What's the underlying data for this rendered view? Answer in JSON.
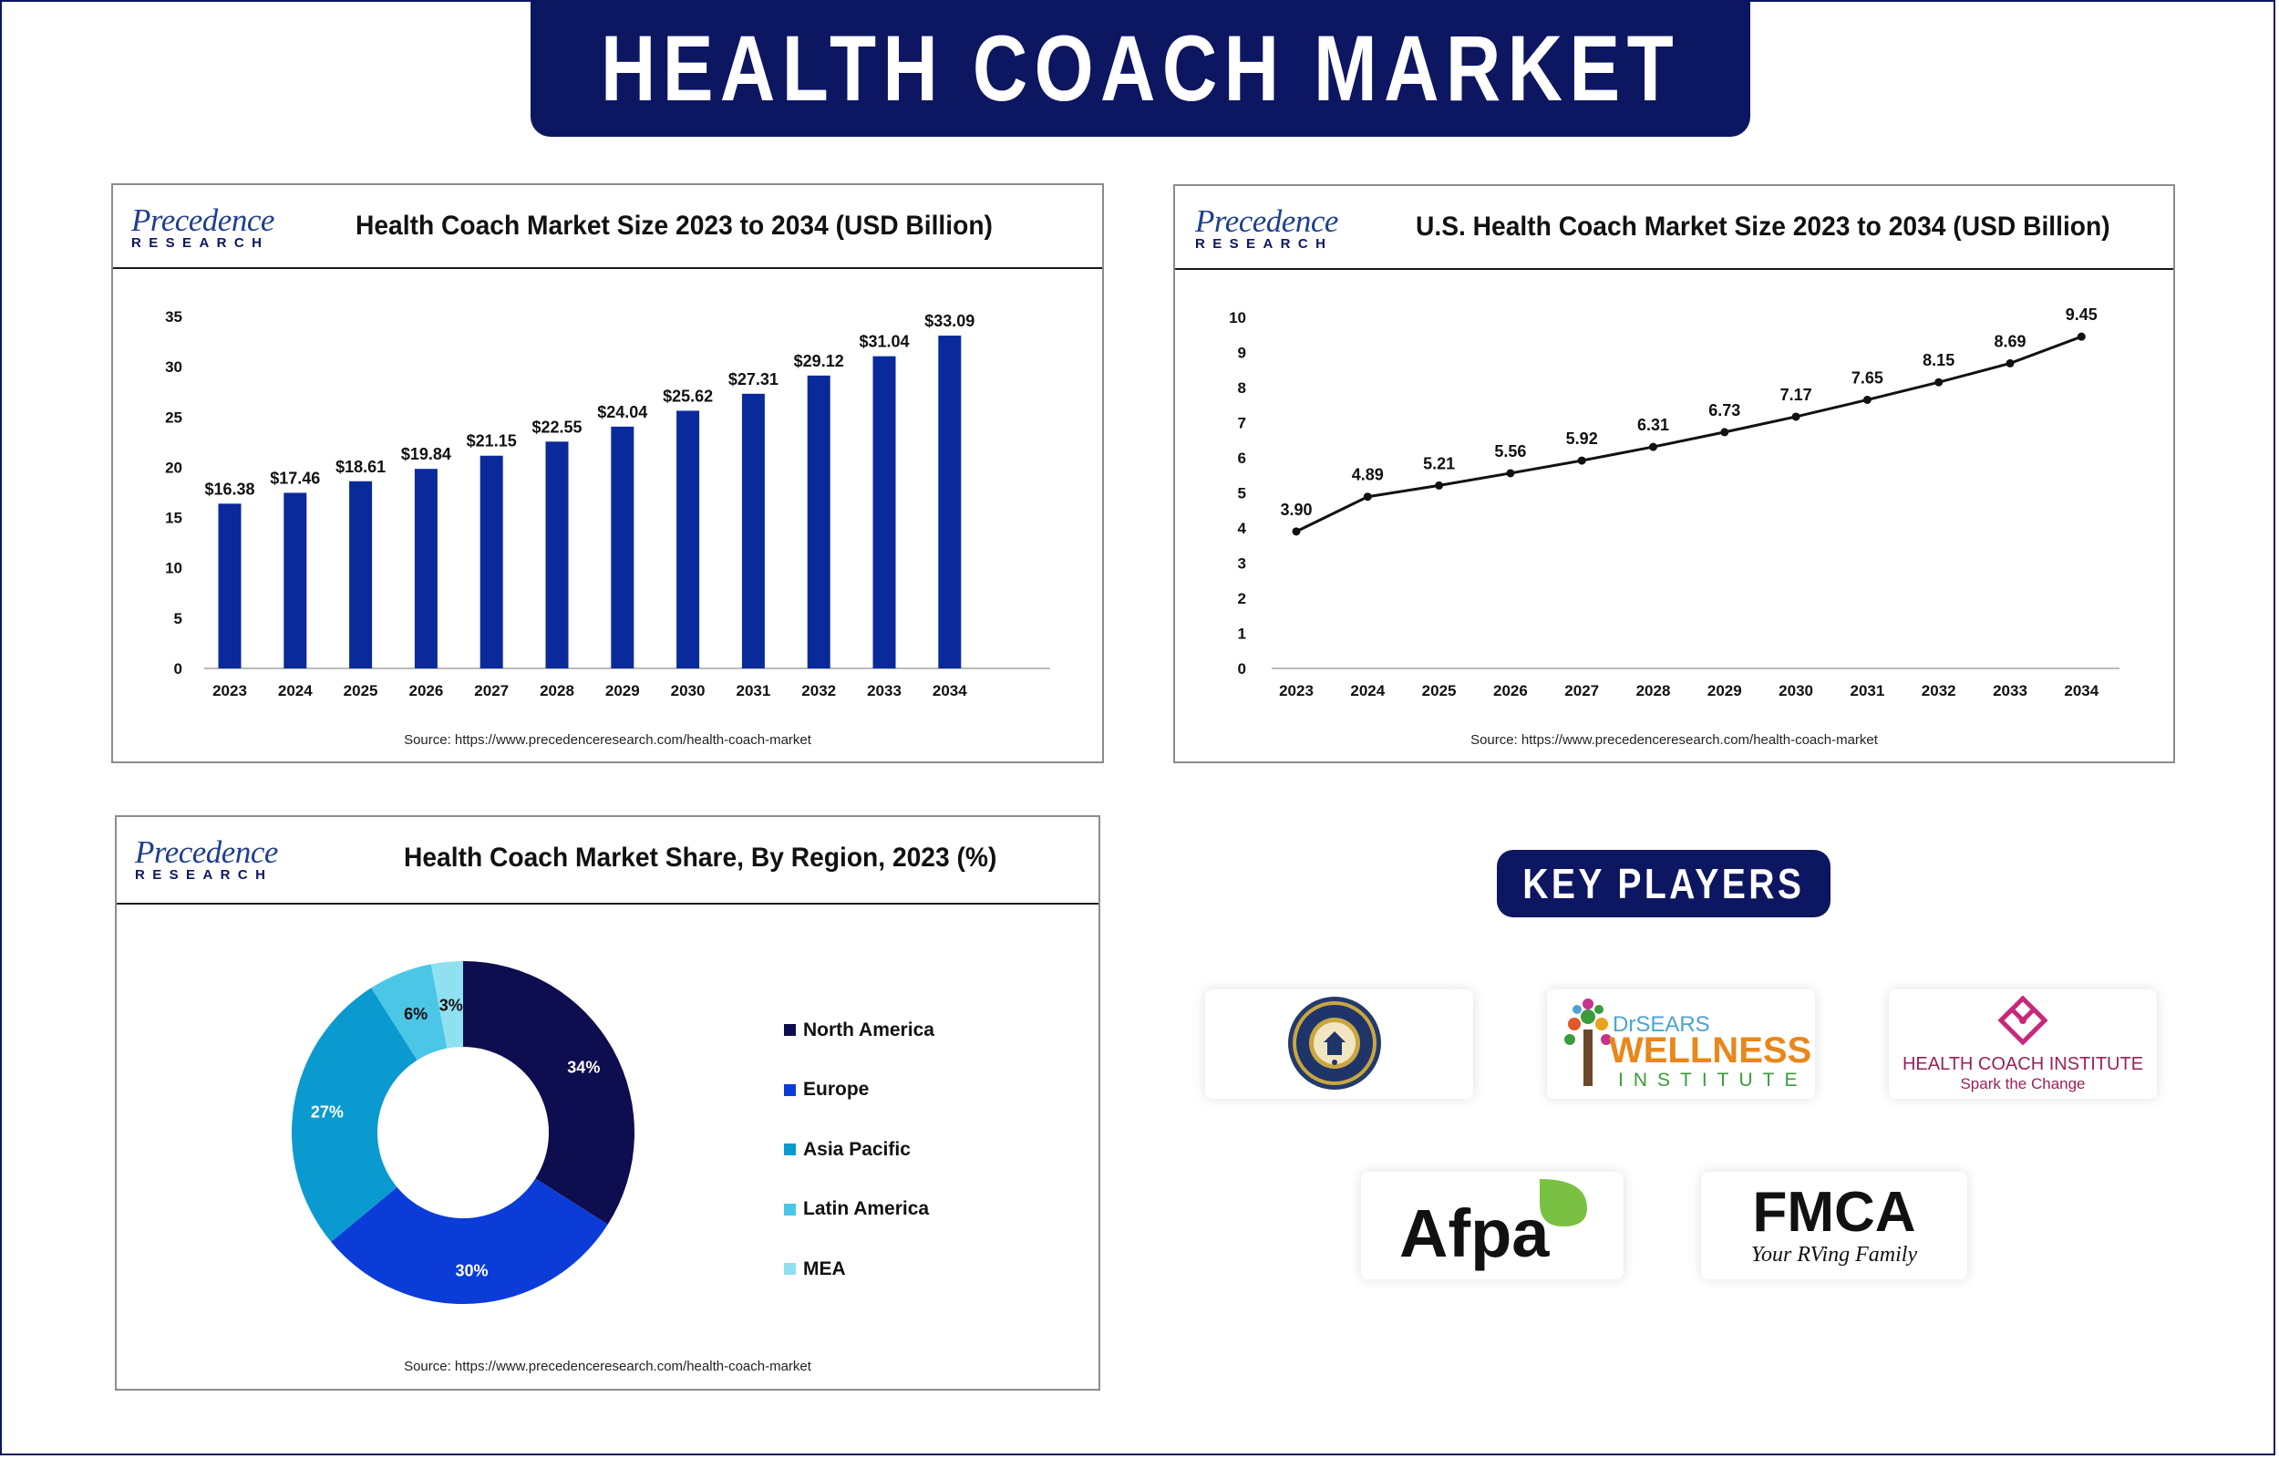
{
  "title": "HEALTH COACH MARKET",
  "brand": {
    "logo_top": "Precedence",
    "logo_bottom": "RESEARCH"
  },
  "colors": {
    "navy": "#0d1660",
    "bar": "#0a2a9b",
    "line": "#111111"
  },
  "panels": {
    "bar": {
      "title": "Health Coach Market Size 2023 to 2034 (USD Billion)",
      "source": "Source: https://www.precedenceresearch.com/health-coach-market"
    },
    "line": {
      "title": "U.S. Health Coach Market Size 2023 to 2034 (USD Billion)",
      "source": "Source: https://www.precedenceresearch.com/health-coach-market"
    },
    "donut": {
      "title": "Health Coach Market Share, By Region, 2023 (%)",
      "source": "Source: https://www.precedenceresearch.com/health-coach-market"
    }
  },
  "chart_data": [
    {
      "type": "bar",
      "title": "Health Coach Market Size 2023 to 2034 (USD Billion)",
      "categories": [
        "2023",
        "2024",
        "2025",
        "2026",
        "2027",
        "2028",
        "2029",
        "2030",
        "2031",
        "2032",
        "2033",
        "2034"
      ],
      "values": [
        16.38,
        17.46,
        18.61,
        19.84,
        21.15,
        22.55,
        24.04,
        25.62,
        27.31,
        29.12,
        31.04,
        33.09
      ],
      "data_labels": [
        "$16.38",
        "$17.46",
        "$18.61",
        "$19.84",
        "$21.15",
        "$22.55",
        "$24.04",
        "$25.62",
        "$27.31",
        "$29.12",
        "$31.04",
        "$33.09"
      ],
      "yticks": [
        0,
        5,
        10,
        15,
        20,
        25,
        30,
        35
      ],
      "ylim": [
        0,
        35
      ],
      "grid": false,
      "color": "#0a2a9b"
    },
    {
      "type": "line",
      "title": "U.S. Health Coach Market Size 2023 to 2034 (USD Billion)",
      "categories": [
        "2023",
        "2024",
        "2025",
        "2026",
        "2027",
        "2028",
        "2029",
        "2030",
        "2031",
        "2032",
        "2033",
        "2034"
      ],
      "values": [
        3.9,
        4.89,
        5.21,
        5.56,
        5.92,
        6.31,
        6.73,
        7.17,
        7.65,
        8.15,
        8.69,
        9.45
      ],
      "data_labels": [
        "3.90",
        "4.89",
        "5.21",
        "5.56",
        "5.92",
        "6.31",
        "6.73",
        "7.17",
        "7.65",
        "8.15",
        "8.69",
        "9.45"
      ],
      "yticks": [
        0,
        1,
        2,
        3,
        4,
        5,
        6,
        7,
        8,
        9,
        10
      ],
      "ylim": [
        0,
        10
      ],
      "grid": false,
      "color": "#111111"
    },
    {
      "type": "pie",
      "donut": true,
      "title": "Health Coach Market Share, By Region, 2023 (%)",
      "labels": [
        "North America",
        "Europe",
        "Asia Pacific",
        "Latin America",
        "MEA"
      ],
      "values": [
        34,
        30,
        27,
        6,
        3
      ],
      "data_labels": [
        "34%",
        "30%",
        "27%",
        "6%",
        "3%"
      ],
      "colors": [
        "#0d0d4f",
        "#0b3cd8",
        "#0b9ad0",
        "#4cc6e6",
        "#8fe0f0"
      ],
      "label_colors": [
        "#ffffff",
        "#ffffff",
        "#ffffff",
        "#111111",
        "#111111"
      ],
      "legend_position": "right"
    }
  ],
  "key_players": {
    "label": "KEY PLAYERS",
    "logos": [
      {
        "name": "University of California seal",
        "text": "THE UNIVERSITY OF CALIFORNIA 1868"
      },
      {
        "name": "Dr Sears Wellness Institute",
        "line1": "DrSEARS",
        "line2": "WELLNESS",
        "line3": "INSTITUTE"
      },
      {
        "name": "Health Coach Institute",
        "line1": "HEALTH COACH INSTITUTE",
        "line2": "Spark the Change"
      },
      {
        "name": "Afpa",
        "text": "Afpa"
      },
      {
        "name": "FMCA",
        "line1": "FMCA",
        "line2": "Your RVing Family"
      }
    ]
  }
}
